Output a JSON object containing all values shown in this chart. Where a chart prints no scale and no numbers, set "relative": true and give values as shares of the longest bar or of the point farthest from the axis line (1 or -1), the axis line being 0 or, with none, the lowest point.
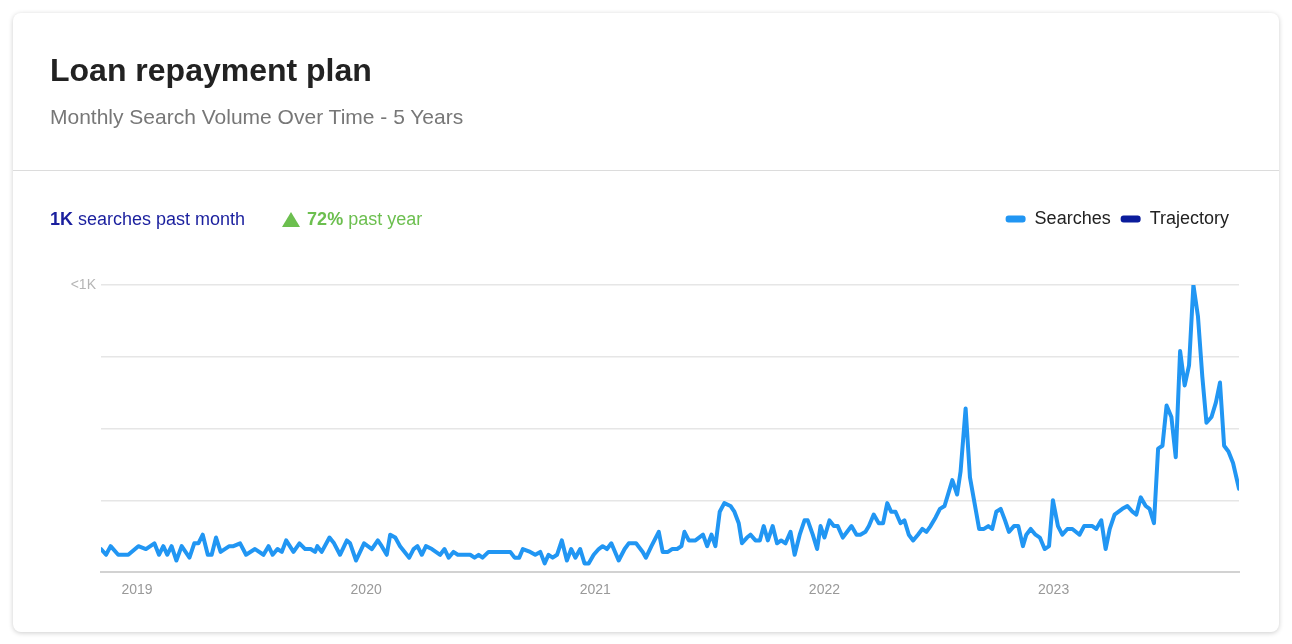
{
  "chart_data": {
    "type": "line",
    "title": "Loan repayment plan",
    "subtitle": "Monthly Search Volume Over Time - 5 Years",
    "annotations": [
      "1K searches past month",
      "72% past year",
      "<1K"
    ],
    "relative": true,
    "x": [
      2018.843,
      2018.865,
      2018.885,
      2018.918,
      2018.962,
      2019.006,
      2019.039,
      2019.076,
      2019.096,
      2019.115,
      2019.132,
      2019.151,
      2019.172,
      2019.195,
      2019.229,
      2019.25,
      2019.268,
      2019.287,
      2019.309,
      2019.326,
      2019.345,
      2019.365,
      2019.403,
      2019.421,
      2019.45,
      2019.476,
      2019.515,
      2019.552,
      2019.574,
      2019.592,
      2019.613,
      2019.632,
      2019.651,
      2019.683,
      2019.709,
      2019.734,
      2019.758,
      2019.777,
      2019.787,
      2019.806,
      2019.84,
      2019.86,
      2019.886,
      2019.916,
      2019.93,
      2019.956,
      2019.991,
      2020.025,
      2020.051,
      2020.068,
      2020.09,
      2020.105,
      2020.127,
      2020.148,
      2020.188,
      2020.207,
      2020.224,
      2020.243,
      2020.261,
      2020.287,
      2020.323,
      2020.342,
      2020.36,
      2020.381,
      2020.4,
      2020.454,
      2020.473,
      2020.491,
      2020.508,
      2020.534,
      2020.629,
      2020.648,
      2020.668,
      2020.684,
      2020.716,
      2020.738,
      2020.76,
      2020.779,
      2020.796,
      2020.814,
      2020.833,
      2020.854,
      2020.876,
      2020.895,
      2020.913,
      2020.934,
      2020.953,
      2020.971,
      2020.993,
      2021.015,
      2021.032,
      2021.051,
      2021.07,
      2021.102,
      2021.128,
      2021.146,
      2021.178,
      2021.207,
      2021.221,
      2021.245,
      2021.277,
      2021.294,
      2021.317,
      2021.335,
      2021.357,
      2021.376,
      2021.389,
      2021.408,
      2021.437,
      2021.47,
      2021.488,
      2021.507,
      2021.524,
      2021.543,
      2021.563,
      2021.59,
      2021.607,
      2021.626,
      2021.64,
      2021.662,
      2021.677,
      2021.699,
      2021.718,
      2021.735,
      2021.753,
      2021.774,
      2021.793,
      2021.811,
      2021.83,
      2021.852,
      2021.87,
      2021.892,
      2021.913,
      2021.927,
      2021.949,
      2021.968,
      2021.983,
      2022.0,
      2022.022,
      2022.041,
      2022.058,
      2022.08,
      2022.099,
      2022.118,
      2022.14,
      2022.157,
      2022.179,
      2022.194,
      2022.215,
      2022.237,
      2022.256,
      2022.274,
      2022.291,
      2022.31,
      2022.332,
      2022.349,
      2022.368,
      2022.387,
      2022.408,
      2022.427,
      2022.445,
      2022.463,
      2022.485,
      2022.504,
      2022.524,
      2022.543,
      2022.558,
      2022.579,
      2022.594,
      2022.616,
      2022.635,
      2022.655,
      2022.675,
      2022.696,
      2022.715,
      2022.732,
      2022.75,
      2022.769,
      2022.788,
      2022.805,
      2022.827,
      2022.846,
      2022.866,
      2022.881,
      2022.9,
      2022.921,
      2022.94,
      2022.961,
      2022.98,
      2022.997,
      2023.019,
      2023.038,
      2023.06,
      2023.082,
      2023.113,
      2023.133,
      2023.169,
      2023.186,
      2023.208,
      2023.227,
      2023.245,
      2023.266,
      2023.3,
      2023.322,
      2023.344,
      2023.361,
      2023.38,
      2023.402,
      2023.419,
      2023.438,
      2023.456,
      2023.475,
      2023.493,
      2023.514,
      2023.533,
      2023.552,
      2023.572,
      2023.591,
      2023.61,
      2023.63,
      2023.649,
      2023.667,
      2023.689,
      2023.708,
      2023.726,
      2023.744,
      2023.763,
      2023.783,
      2023.809
    ],
    "xlim": [
      2018.843,
      2023.809
    ],
    "xticks": [
      2019,
      2020,
      2021,
      2022,
      2023
    ],
    "series": [
      {
        "name": "Searches",
        "color": "#2196f3",
        "values": [
          0.08,
          0.06,
          0.09,
          0.06,
          0.06,
          0.09,
          0.08,
          0.1,
          0.06,
          0.09,
          0.06,
          0.09,
          0.04,
          0.09,
          0.05,
          0.1,
          0.1,
          0.13,
          0.06,
          0.06,
          0.12,
          0.07,
          0.09,
          0.09,
          0.1,
          0.06,
          0.08,
          0.06,
          0.09,
          0.06,
          0.08,
          0.07,
          0.11,
          0.07,
          0.1,
          0.08,
          0.08,
          0.07,
          0.09,
          0.07,
          0.12,
          0.1,
          0.06,
          0.11,
          0.1,
          0.04,
          0.1,
          0.08,
          0.11,
          0.09,
          0.06,
          0.13,
          0.12,
          0.09,
          0.05,
          0.08,
          0.09,
          0.06,
          0.09,
          0.08,
          0.06,
          0.08,
          0.05,
          0.07,
          0.06,
          0.06,
          0.05,
          0.06,
          0.05,
          0.07,
          0.07,
          0.05,
          0.05,
          0.08,
          0.07,
          0.06,
          0.07,
          0.03,
          0.06,
          0.05,
          0.06,
          0.11,
          0.04,
          0.08,
          0.05,
          0.08,
          0.03,
          0.03,
          0.06,
          0.08,
          0.09,
          0.08,
          0.1,
          0.04,
          0.08,
          0.1,
          0.1,
          0.07,
          0.05,
          0.09,
          0.14,
          0.07,
          0.07,
          0.08,
          0.08,
          0.09,
          0.14,
          0.11,
          0.11,
          0.13,
          0.09,
          0.13,
          0.09,
          0.21,
          0.24,
          0.23,
          0.21,
          0.17,
          0.1,
          0.12,
          0.13,
          0.11,
          0.11,
          0.16,
          0.11,
          0.16,
          0.1,
          0.11,
          0.1,
          0.14,
          0.06,
          0.13,
          0.18,
          0.18,
          0.13,
          0.08,
          0.16,
          0.12,
          0.18,
          0.16,
          0.16,
          0.12,
          0.14,
          0.16,
          0.13,
          0.13,
          0.14,
          0.16,
          0.2,
          0.17,
          0.17,
          0.24,
          0.21,
          0.21,
          0.17,
          0.18,
          0.13,
          0.11,
          0.13,
          0.15,
          0.14,
          0.16,
          0.19,
          0.22,
          0.23,
          0.28,
          0.32,
          0.27,
          0.35,
          0.57,
          0.33,
          0.24,
          0.15,
          0.15,
          0.16,
          0.15,
          0.21,
          0.22,
          0.18,
          0.14,
          0.16,
          0.16,
          0.09,
          0.13,
          0.15,
          0.13,
          0.12,
          0.08,
          0.09,
          0.25,
          0.16,
          0.13,
          0.15,
          0.15,
          0.13,
          0.16,
          0.16,
          0.15,
          0.18,
          0.08,
          0.15,
          0.2,
          0.22,
          0.23,
          0.21,
          0.2,
          0.26,
          0.23,
          0.22,
          0.17,
          0.43,
          0.44,
          0.58,
          0.54,
          0.4,
          0.77,
          0.65,
          0.72,
          1,
          0.89,
          0.68,
          0.52,
          0.54,
          0.59,
          0.66,
          0.44,
          0.42,
          0.38,
          0.29
        ]
      },
      {
        "name": "Trajectory",
        "color": "#0b1c9c",
        "values": [
          null,
          null,
          null,
          null,
          null,
          null,
          null,
          null,
          null,
          null,
          null,
          null,
          null,
          null,
          null,
          null,
          null,
          null,
          null,
          null,
          null,
          null,
          null,
          null,
          null,
          null,
          null,
          null,
          null,
          null,
          null,
          null,
          null,
          null,
          null,
          null,
          null,
          null,
          null,
          null,
          null,
          null,
          null,
          null,
          null,
          null,
          null,
          null,
          null,
          null,
          null,
          null,
          null,
          null,
          null,
          null,
          null,
          null,
          null,
          null,
          null,
          null,
          null,
          null,
          null,
          null,
          null,
          null,
          null,
          null,
          null,
          null,
          null,
          null,
          null,
          null,
          null,
          null,
          null,
          null,
          null,
          null,
          null,
          null,
          null,
          null,
          null,
          null,
          null,
          null,
          null,
          null,
          null,
          null,
          null,
          null,
          null,
          null,
          null,
          null,
          null,
          null,
          null,
          null,
          null,
          null,
          null,
          null,
          null,
          null,
          null,
          null,
          null,
          null,
          null,
          null,
          null,
          null,
          null,
          null,
          null,
          null,
          null,
          null,
          null,
          null,
          null,
          null,
          null,
          null,
          null,
          null,
          null,
          null,
          null,
          null,
          null,
          null,
          null,
          null,
          null,
          null,
          null,
          null,
          null,
          null,
          null,
          null,
          null,
          null,
          null,
          null,
          null,
          null,
          null,
          null,
          null,
          null,
          null,
          null,
          null,
          null,
          null,
          null,
          null,
          null,
          null,
          null,
          null,
          null,
          null,
          null,
          null,
          null,
          null,
          null,
          null,
          null,
          null,
          null,
          null,
          null,
          null,
          null,
          null,
          null,
          null,
          null,
          null,
          null,
          null,
          null,
          null,
          null,
          null,
          null,
          null,
          null,
          null,
          null,
          null,
          null,
          null,
          null,
          null,
          null,
          null,
          null,
          null,
          null,
          null,
          null,
          null,
          null,
          null,
          null,
          null,
          null,
          null,
          null,
          null,
          null,
          null,
          null,
          null,
          null,
          null,
          null,
          null
        ]
      }
    ],
    "grid": "y",
    "legend": "top right",
    "marker": "none",
    "line_style": "solid"
  }
}
